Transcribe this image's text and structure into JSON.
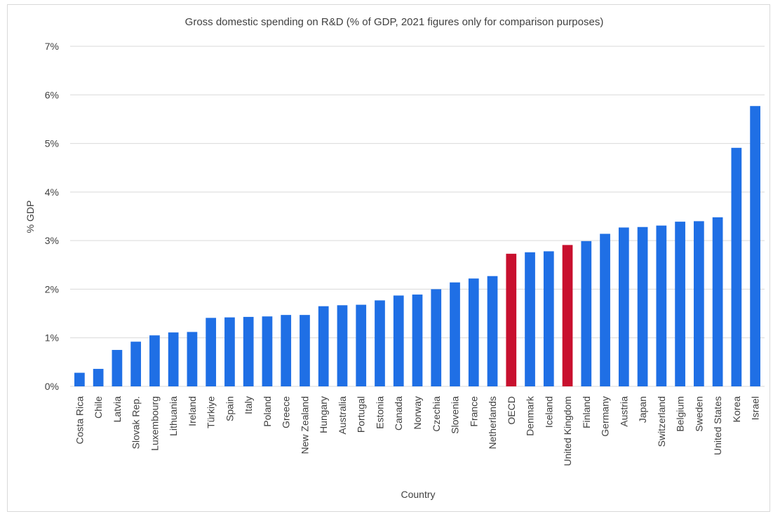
{
  "chart_data": {
    "type": "bar",
    "title": "Gross domestic spending on R&D (% of GDP, 2021 figures only for comparison purposes)",
    "xlabel": "Country",
    "ylabel": "% GDP",
    "ylim": [
      0,
      7
    ],
    "yticks": [
      "0%",
      "1%",
      "2%",
      "3%",
      "4%",
      "5%",
      "6%",
      "7%"
    ],
    "grid": true,
    "legend": "none",
    "colors": {
      "default": "#1f6fe5",
      "highlight": "#c8102e",
      "grid": "#d9d9d9"
    },
    "highlighted": [
      "OECD",
      "United Kingdom"
    ],
    "categories": [
      "Costa Rica",
      "Chile",
      "Latvia",
      "Slovak Rep.",
      "Luxembourg",
      "Lithuania",
      "Ireland",
      "Türkiye",
      "Spain",
      "Italy",
      "Poland",
      "Greece",
      "New Zealand",
      "Hungary",
      "Australia",
      "Portugal",
      "Estonia",
      "Canada",
      "Norway",
      "Czechia",
      "Slovenia",
      "France",
      "Netherlands",
      "OECD",
      "Denmark",
      "Iceland",
      "United Kingdom",
      "Finland",
      "Germany",
      "Austria",
      "Japan",
      "Switzerland",
      "Belgium",
      "Sweden",
      "United States",
      "Korea",
      "Israel"
    ],
    "values": [
      0.28,
      0.36,
      0.75,
      0.92,
      1.05,
      1.11,
      1.12,
      1.41,
      1.42,
      1.43,
      1.44,
      1.47,
      1.47,
      1.65,
      1.67,
      1.68,
      1.77,
      1.87,
      1.89,
      2.0,
      2.14,
      2.22,
      2.27,
      2.73,
      2.76,
      2.78,
      2.91,
      2.99,
      3.14,
      3.27,
      3.28,
      3.31,
      3.39,
      3.4,
      3.48,
      4.91,
      5.77
    ]
  }
}
